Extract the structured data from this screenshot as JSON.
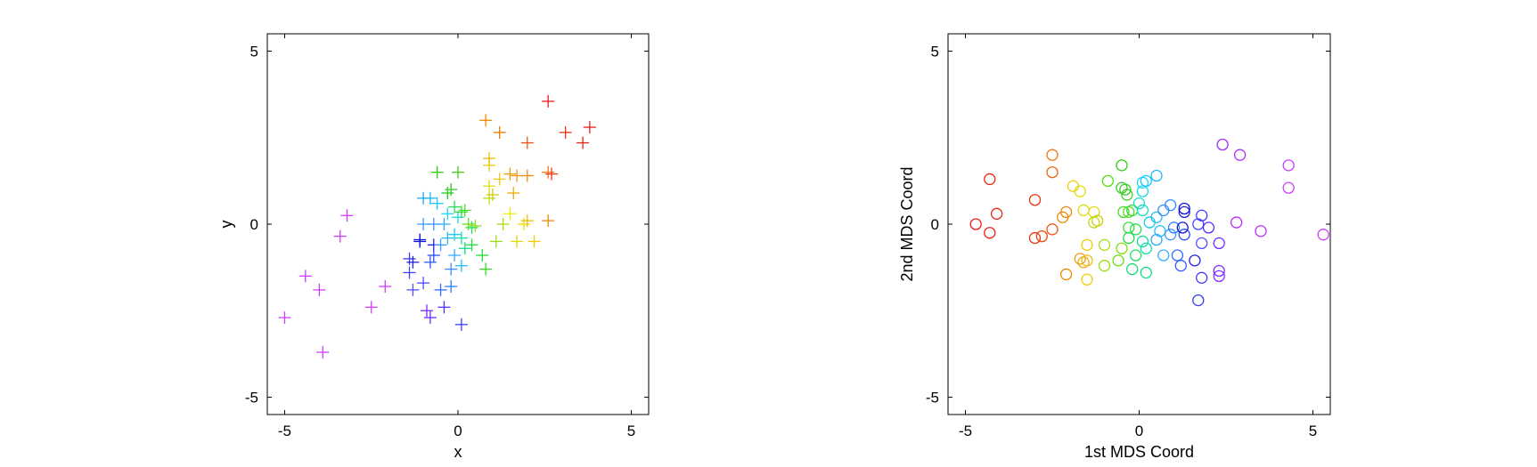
{
  "chart_data": [
    {
      "type": "scatter",
      "title": "",
      "xlabel": "x",
      "ylabel": "y",
      "xlim": [
        -5.5,
        5.5
      ],
      "ylim": [
        -5.5,
        5.5
      ],
      "xticks": [
        -5,
        0,
        5
      ],
      "yticks": [
        -5,
        0,
        5
      ],
      "grid": false,
      "marker": "plus",
      "colors": [
        "#d13dff",
        "#ee1a1a",
        "#0000ff"
      ],
      "series": [
        {
          "points": [
            {
              "x": -5.0,
              "y": -2.7,
              "color": "#d13dff"
            },
            {
              "x": -4.4,
              "y": -1.5,
              "color": "#d13dff"
            },
            {
              "x": -4.0,
              "y": -1.9,
              "color": "#d13dff"
            },
            {
              "x": -3.9,
              "y": -3.7,
              "color": "#d13dff"
            },
            {
              "x": -3.4,
              "y": -0.35,
              "color": "#d13dff"
            },
            {
              "x": -3.2,
              "y": 0.25,
              "color": "#d13dff"
            },
            {
              "x": -2.5,
              "y": -2.4,
              "color": "#d13dff"
            },
            {
              "x": -2.1,
              "y": -1.8,
              "color": "#d13dff"
            },
            {
              "x": -0.9,
              "y": -2.5,
              "color": "#7a2cff"
            },
            {
              "x": -0.8,
              "y": -2.7,
              "color": "#6b2cff"
            },
            {
              "x": -0.4,
              "y": -2.4,
              "color": "#5a2cff"
            },
            {
              "x": 0.1,
              "y": -2.9,
              "color": "#3d3dff"
            },
            {
              "x": -1.0,
              "y": -1.7,
              "color": "#4848ff"
            },
            {
              "x": -1.3,
              "y": -1.9,
              "color": "#5050ff"
            },
            {
              "x": -1.4,
              "y": -1.4,
              "color": "#4040ee"
            },
            {
              "x": -1.4,
              "y": -1.0,
              "color": "#3a3aee"
            },
            {
              "x": -1.3,
              "y": -1.1,
              "color": "#2020dd"
            },
            {
              "x": -1.1,
              "y": -0.5,
              "color": "#1515cc"
            },
            {
              "x": -1.1,
              "y": -0.45,
              "color": "#1010dd"
            },
            {
              "x": -0.7,
              "y": -0.6,
              "color": "#2222dd"
            },
            {
              "x": -0.7,
              "y": -0.9,
              "color": "#2a4aff"
            },
            {
              "x": -0.8,
              "y": -1.1,
              "color": "#2c5cff"
            },
            {
              "x": -0.5,
              "y": -1.9,
              "color": "#2c6cff"
            },
            {
              "x": -0.2,
              "y": -1.8,
              "color": "#2a7aff"
            },
            {
              "x": -0.2,
              "y": -1.3,
              "color": "#3a8cff"
            },
            {
              "x": -0.5,
              "y": -0.6,
              "color": "#3a9cff"
            },
            {
              "x": -0.1,
              "y": -0.9,
              "color": "#3aaaff"
            },
            {
              "x": 0.1,
              "y": -1.2,
              "color": "#22bbff"
            },
            {
              "x": -1.0,
              "y": 0.0,
              "color": "#3a9cff"
            },
            {
              "x": -0.7,
              "y": 0.0,
              "color": "#3a90ff"
            },
            {
              "x": -0.4,
              "y": 0.0,
              "color": "#30a8ff"
            },
            {
              "x": -0.3,
              "y": -0.4,
              "color": "#22bbee"
            },
            {
              "x": -0.1,
              "y": -0.3,
              "color": "#11ccee"
            },
            {
              "x": -1.0,
              "y": 0.75,
              "color": "#1aa8ff"
            },
            {
              "x": -0.8,
              "y": 0.75,
              "color": "#1ab8ff"
            },
            {
              "x": -0.6,
              "y": 0.6,
              "color": "#1ac8ff"
            },
            {
              "x": -0.3,
              "y": 0.3,
              "color": "#1ad8ff"
            },
            {
              "x": 0.0,
              "y": 0.2,
              "color": "#11dddd"
            },
            {
              "x": 0.1,
              "y": -0.4,
              "color": "#11ddaa"
            },
            {
              "x": 0.2,
              "y": -0.7,
              "color": "#11dd88"
            },
            {
              "x": 0.4,
              "y": -0.1,
              "color": "#11dd66"
            },
            {
              "x": 0.4,
              "y": -0.6,
              "color": "#22dd44"
            },
            {
              "x": 0.7,
              "y": -0.9,
              "color": "#22dd33"
            },
            {
              "x": 0.8,
              "y": -1.3,
              "color": "#33dd22"
            },
            {
              "x": -0.1,
              "y": 0.5,
              "color": "#22dd55"
            },
            {
              "x": 0.1,
              "y": 0.35,
              "color": "#33dd33"
            },
            {
              "x": 0.2,
              "y": 0.4,
              "color": "#44dd22"
            },
            {
              "x": -0.3,
              "y": 0.9,
              "color": "#22cc22"
            },
            {
              "x": -0.2,
              "y": 1.0,
              "color": "#33cc22"
            },
            {
              "x": -0.6,
              "y": 1.5,
              "color": "#33cc11"
            },
            {
              "x": 0.0,
              "y": 1.5,
              "color": "#44cc11"
            },
            {
              "x": 0.3,
              "y": 0.0,
              "color": "#66dd11"
            },
            {
              "x": 0.5,
              "y": -0.05,
              "color": "#88dd11"
            },
            {
              "x": 1.1,
              "y": -0.5,
              "color": "#99dd11"
            },
            {
              "x": 1.3,
              "y": 0.0,
              "color": "#aadd11"
            },
            {
              "x": 0.9,
              "y": 0.75,
              "color": "#bbdd11"
            },
            {
              "x": 1.0,
              "y": 0.85,
              "color": "#cccc11"
            },
            {
              "x": 0.9,
              "y": 1.1,
              "color": "#dddd11"
            },
            {
              "x": 1.2,
              "y": 1.3,
              "color": "#eecc11"
            },
            {
              "x": 0.9,
              "y": 1.7,
              "color": "#eecc00"
            },
            {
              "x": 0.9,
              "y": 1.9,
              "color": "#eebb00"
            },
            {
              "x": 1.5,
              "y": 0.3,
              "color": "#eeee00"
            },
            {
              "x": 1.7,
              "y": -0.5,
              "color": "#dddd00"
            },
            {
              "x": 1.9,
              "y": 0.0,
              "color": "#eedd00"
            },
            {
              "x": 2.0,
              "y": 0.1,
              "color": "#eebb00"
            },
            {
              "x": 2.2,
              "y": -0.5,
              "color": "#eecc00"
            },
            {
              "x": 1.6,
              "y": 0.9,
              "color": "#eeaa00"
            },
            {
              "x": 1.5,
              "y": 1.45,
              "color": "#ee9900"
            },
            {
              "x": 1.7,
              "y": 1.4,
              "color": "#ee9911"
            },
            {
              "x": 2.0,
              "y": 1.4,
              "color": "#ee8811"
            },
            {
              "x": 2.6,
              "y": 1.5,
              "color": "#ee7711"
            },
            {
              "x": 2.6,
              "y": 0.1,
              "color": "#ee8811"
            },
            {
              "x": 0.8,
              "y": 3.0,
              "color": "#ee8800"
            },
            {
              "x": 1.2,
              "y": 2.65,
              "color": "#ee7700"
            },
            {
              "x": 2.0,
              "y": 2.35,
              "color": "#ee5511"
            },
            {
              "x": 2.7,
              "y": 1.45,
              "color": "#ee3311"
            },
            {
              "x": 3.1,
              "y": 2.65,
              "color": "#ee3311"
            },
            {
              "x": 3.6,
              "y": 2.35,
              "color": "#ee2211"
            },
            {
              "x": 3.8,
              "y": 2.8,
              "color": "#ee1a1a"
            },
            {
              "x": 2.6,
              "y": 3.55,
              "color": "#ee1a1a"
            }
          ]
        }
      ]
    },
    {
      "type": "scatter",
      "title": "",
      "xlabel": "1st MDS Coord",
      "ylabel": "2nd MDS Coord",
      "xlim": [
        -5.5,
        5.5
      ],
      "ylim": [
        -5.5,
        5.5
      ],
      "xticks": [
        -5,
        0,
        5
      ],
      "yticks": [
        -5,
        0,
        5
      ],
      "grid": false,
      "marker": "circle",
      "colors": [
        "#ee1a1a",
        "#d13dff",
        "#0000ff"
      ],
      "series": [
        {
          "points": [
            {
              "x": -4.7,
              "y": 0.0,
              "color": "#ee1a1a"
            },
            {
              "x": -4.3,
              "y": -0.25,
              "color": "#ee1a1a"
            },
            {
              "x": -4.1,
              "y": 0.3,
              "color": "#ee2211"
            },
            {
              "x": -4.3,
              "y": 1.3,
              "color": "#ee2211"
            },
            {
              "x": -3.0,
              "y": 0.7,
              "color": "#ee3311"
            },
            {
              "x": -3.0,
              "y": -0.4,
              "color": "#ee3311"
            },
            {
              "x": -2.8,
              "y": -0.35,
              "color": "#ee4411"
            },
            {
              "x": -2.5,
              "y": -0.15,
              "color": "#ee5511"
            },
            {
              "x": -2.5,
              "y": 1.5,
              "color": "#ee6611"
            },
            {
              "x": -2.5,
              "y": 2.0,
              "color": "#ee7711"
            },
            {
              "x": -2.1,
              "y": 0.35,
              "color": "#ee8811"
            },
            {
              "x": -2.2,
              "y": 0.2,
              "color": "#ee8800"
            },
            {
              "x": -2.1,
              "y": -1.45,
              "color": "#ee8800"
            },
            {
              "x": -1.7,
              "y": -1.0,
              "color": "#ee9911"
            },
            {
              "x": -1.6,
              "y": -1.1,
              "color": "#eeaa11"
            },
            {
              "x": -1.5,
              "y": -1.05,
              "color": "#eebb11"
            },
            {
              "x": -1.5,
              "y": -1.6,
              "color": "#eecc00"
            },
            {
              "x": -1.5,
              "y": -0.6,
              "color": "#eecc00"
            },
            {
              "x": -1.9,
              "y": 1.1,
              "color": "#eecc11"
            },
            {
              "x": -1.7,
              "y": 0.95,
              "color": "#dddd00"
            },
            {
              "x": -1.6,
              "y": 0.4,
              "color": "#dddd11"
            },
            {
              "x": -1.3,
              "y": 0.35,
              "color": "#dddd11"
            },
            {
              "x": -1.2,
              "y": 0.1,
              "color": "#cccc11"
            },
            {
              "x": -1.3,
              "y": 0.05,
              "color": "#bbdd11"
            },
            {
              "x": -1.0,
              "y": -0.6,
              "color": "#aadd11"
            },
            {
              "x": -1.0,
              "y": -1.2,
              "color": "#99dd11"
            },
            {
              "x": -0.5,
              "y": -0.7,
              "color": "#88dd11"
            },
            {
              "x": -0.6,
              "y": -1.05,
              "color": "#66dd11"
            },
            {
              "x": -0.9,
              "y": 1.25,
              "color": "#55dd11"
            },
            {
              "x": -0.5,
              "y": 1.7,
              "color": "#33cc11"
            },
            {
              "x": -0.5,
              "y": 1.05,
              "color": "#33cc22"
            },
            {
              "x": -0.4,
              "y": 1.0,
              "color": "#33cc22"
            },
            {
              "x": -0.35,
              "y": 0.85,
              "color": "#44cc22"
            },
            {
              "x": -0.45,
              "y": 0.35,
              "color": "#44dd22"
            },
            {
              "x": -0.3,
              "y": 0.35,
              "color": "#55dd22"
            },
            {
              "x": -0.2,
              "y": 0.4,
              "color": "#33dd33"
            },
            {
              "x": -0.3,
              "y": -0.1,
              "color": "#33dd33"
            },
            {
              "x": -0.3,
              "y": -0.4,
              "color": "#22dd44"
            },
            {
              "x": -0.1,
              "y": -0.15,
              "color": "#22dd55"
            },
            {
              "x": -0.1,
              "y": -0.9,
              "color": "#22dd66"
            },
            {
              "x": -0.2,
              "y": -1.3,
              "color": "#11dd77"
            },
            {
              "x": 0.2,
              "y": -1.4,
              "color": "#11dd88"
            },
            {
              "x": 0.1,
              "y": -0.5,
              "color": "#11dd99"
            },
            {
              "x": 0.2,
              "y": -0.7,
              "color": "#11ddaa"
            },
            {
              "x": 0.1,
              "y": 0.4,
              "color": "#11ddbb"
            },
            {
              "x": 0.0,
              "y": 0.6,
              "color": "#11ddcc"
            },
            {
              "x": 0.1,
              "y": 0.95,
              "color": "#11dddd"
            },
            {
              "x": 0.1,
              "y": 1.2,
              "color": "#1ad8ff"
            },
            {
              "x": 0.2,
              "y": 1.25,
              "color": "#1ac8ff"
            },
            {
              "x": 0.5,
              "y": 1.4,
              "color": "#1ab8ff"
            },
            {
              "x": 0.3,
              "y": 0.05,
              "color": "#11ccee"
            },
            {
              "x": 0.5,
              "y": 0.2,
              "color": "#22bbee"
            },
            {
              "x": 0.6,
              "y": -0.2,
              "color": "#22bbff"
            },
            {
              "x": 0.5,
              "y": -0.45,
              "color": "#30a8ff"
            },
            {
              "x": 0.7,
              "y": -0.9,
              "color": "#3aaaff"
            },
            {
              "x": 0.9,
              "y": -0.3,
              "color": "#3a9cff"
            },
            {
              "x": 0.7,
              "y": 0.4,
              "color": "#3a90ff"
            },
            {
              "x": 0.9,
              "y": 0.55,
              "color": "#2c8cff"
            },
            {
              "x": 1.0,
              "y": -0.1,
              "color": "#2a7aff"
            },
            {
              "x": 1.1,
              "y": -0.9,
              "color": "#2c6cff"
            },
            {
              "x": 1.2,
              "y": -1.2,
              "color": "#2c5cff"
            },
            {
              "x": 1.3,
              "y": -0.3,
              "color": "#2a4aff"
            },
            {
              "x": 1.3,
              "y": 0.35,
              "color": "#2222dd"
            },
            {
              "x": 1.3,
              "y": 0.45,
              "color": "#1010dd"
            },
            {
              "x": 1.25,
              "y": -0.1,
              "color": "#1515cc"
            },
            {
              "x": 1.6,
              "y": -1.05,
              "color": "#2020dd"
            },
            {
              "x": 1.7,
              "y": -2.2,
              "color": "#3a3aee"
            },
            {
              "x": 1.8,
              "y": -1.55,
              "color": "#4040ee"
            },
            {
              "x": 1.8,
              "y": -0.55,
              "color": "#5050ff"
            },
            {
              "x": 1.7,
              "y": 0.0,
              "color": "#4848ff"
            },
            {
              "x": 1.8,
              "y": 0.25,
              "color": "#3d3dff"
            },
            {
              "x": 2.0,
              "y": -0.1,
              "color": "#5a2cff"
            },
            {
              "x": 2.3,
              "y": -0.55,
              "color": "#6b2cff"
            },
            {
              "x": 2.3,
              "y": -1.35,
              "color": "#7a2cff"
            },
            {
              "x": 2.3,
              "y": -1.5,
              "color": "#8a2cff"
            },
            {
              "x": 2.4,
              "y": 2.3,
              "color": "#9a2cff"
            },
            {
              "x": 2.9,
              "y": 2.0,
              "color": "#aa2cff"
            },
            {
              "x": 2.8,
              "y": 0.05,
              "color": "#b42cff"
            },
            {
              "x": 3.5,
              "y": -0.2,
              "color": "#c02cff"
            },
            {
              "x": 4.3,
              "y": 1.7,
              "color": "#c83dff"
            },
            {
              "x": 4.3,
              "y": 1.05,
              "color": "#d13dff"
            },
            {
              "x": 5.3,
              "y": -0.3,
              "color": "#d13dff"
            }
          ]
        }
      ]
    }
  ]
}
